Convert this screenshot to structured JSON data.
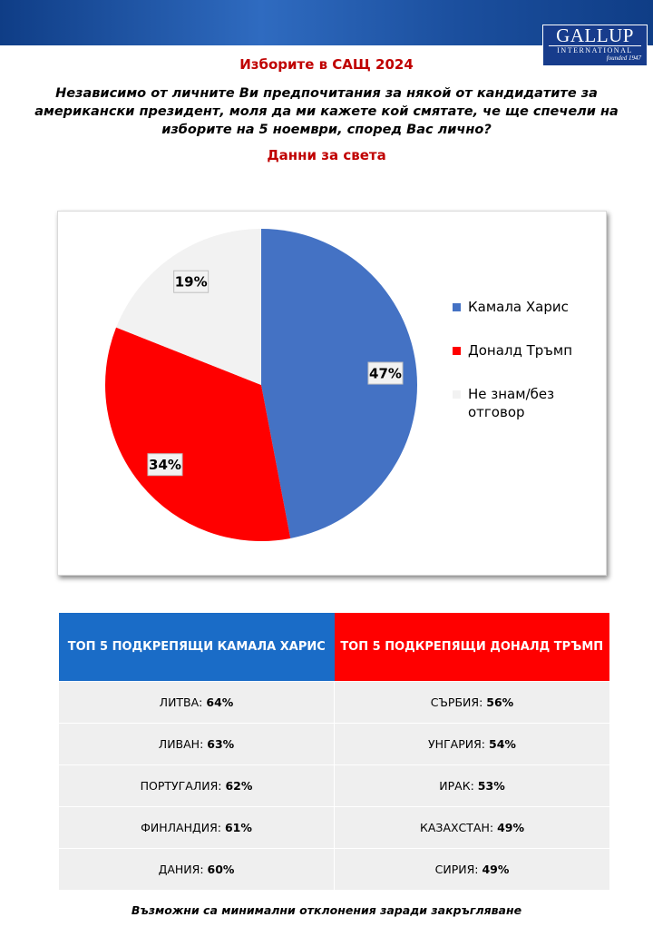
{
  "header": {
    "logo": "GALLUP",
    "logo_sub": "INTERNATIONAL",
    "logo_founded": "founded 1947",
    "title": "Изборите в САЩ 2024",
    "question": "Независимо от личните Ви предпочитания за някой от кандидатите за американски президент, моля да ми кажете кой смятате, че ще спечели на изборите на 5 ноември, според Вас лично?",
    "subtitle": "Данни за света"
  },
  "chart_data": {
    "type": "pie",
    "categories": [
      "Камала Харис",
      "Доналд Тръмп",
      "Не знам/без отговор"
    ],
    "values": [
      47,
      34,
      19
    ],
    "value_labels": [
      "47%",
      "34%",
      "19%"
    ],
    "colors": [
      "#4472c4",
      "#ff0000",
      "#f2f2f2"
    ],
    "legend": "right"
  },
  "table": {
    "headers": [
      "ТОП 5 ПОДКРЕПЯЩИ КАМАЛА ХАРИС",
      "ТОП 5 ПОДКРЕПЯЩИ ДОНАЛД ТРЪМП"
    ],
    "rows": [
      [
        "ЛИТВА:",
        "64%",
        "СЪРБИЯ:",
        "56%"
      ],
      [
        "ЛИВАН:",
        "63%",
        "УНГАРИЯ:",
        "54%"
      ],
      [
        "ПОРТУГАЛИЯ:",
        "62%",
        "ИРАК:",
        "53%"
      ],
      [
        "ФИНЛАНДИЯ:",
        "61%",
        "КАЗАХСТАН:",
        "49%"
      ],
      [
        "ДАНИЯ:",
        "60%",
        "СИРИЯ:",
        "49%"
      ]
    ]
  },
  "footnote": "Възможни са минимални отклонения заради закръгляване"
}
